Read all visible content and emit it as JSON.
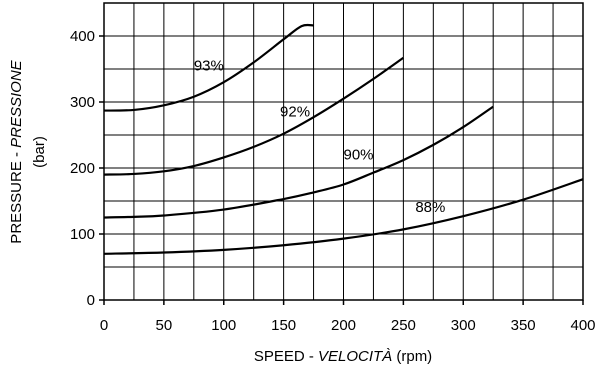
{
  "chart_data": {
    "type": "line",
    "title": "",
    "xlabel": {
      "main": "SPEED - ",
      "italic": "VELOCITÀ",
      "unit": " (rpm)"
    },
    "ylabel": {
      "main": "PRESSURE - ",
      "italic": "PRESSIONE",
      "unit": "(bar)"
    },
    "xlim": [
      0,
      400
    ],
    "ylim": [
      0,
      450
    ],
    "x_ticks": [
      0,
      50,
      100,
      150,
      200,
      250,
      300,
      350,
      400
    ],
    "y_ticks": [
      0,
      100,
      200,
      300,
      400
    ],
    "x_grid_step": 25,
    "y_grid_step": 50,
    "grid": true,
    "series": [
      {
        "name": "93%",
        "label_at": [
          75,
          348
        ],
        "x": [
          0,
          25,
          50,
          75,
          100,
          125,
          150,
          165,
          175
        ],
        "y": [
          287,
          288,
          295,
          308,
          330,
          360,
          395,
          415,
          416
        ]
      },
      {
        "name": "92%",
        "label_at": [
          147,
          278
        ],
        "x": [
          0,
          25,
          50,
          75,
          100,
          125,
          150,
          175,
          200,
          225,
          250
        ],
        "y": [
          190,
          191,
          195,
          203,
          216,
          232,
          252,
          277,
          305,
          335,
          367
        ]
      },
      {
        "name": "90%",
        "label_at": [
          200,
          213
        ],
        "x": [
          0,
          25,
          50,
          100,
          150,
          175,
          200,
          225,
          250,
          275,
          300,
          325
        ],
        "y": [
          125,
          126,
          128,
          137,
          153,
          163,
          175,
          193,
          212,
          235,
          262,
          293
        ]
      },
      {
        "name": "88%",
        "label_at": [
          260,
          133
        ],
        "x": [
          0,
          50,
          100,
          150,
          200,
          250,
          300,
          350,
          400
        ],
        "y": [
          70,
          72,
          76,
          83,
          93,
          107,
          127,
          152,
          183
        ]
      }
    ]
  }
}
